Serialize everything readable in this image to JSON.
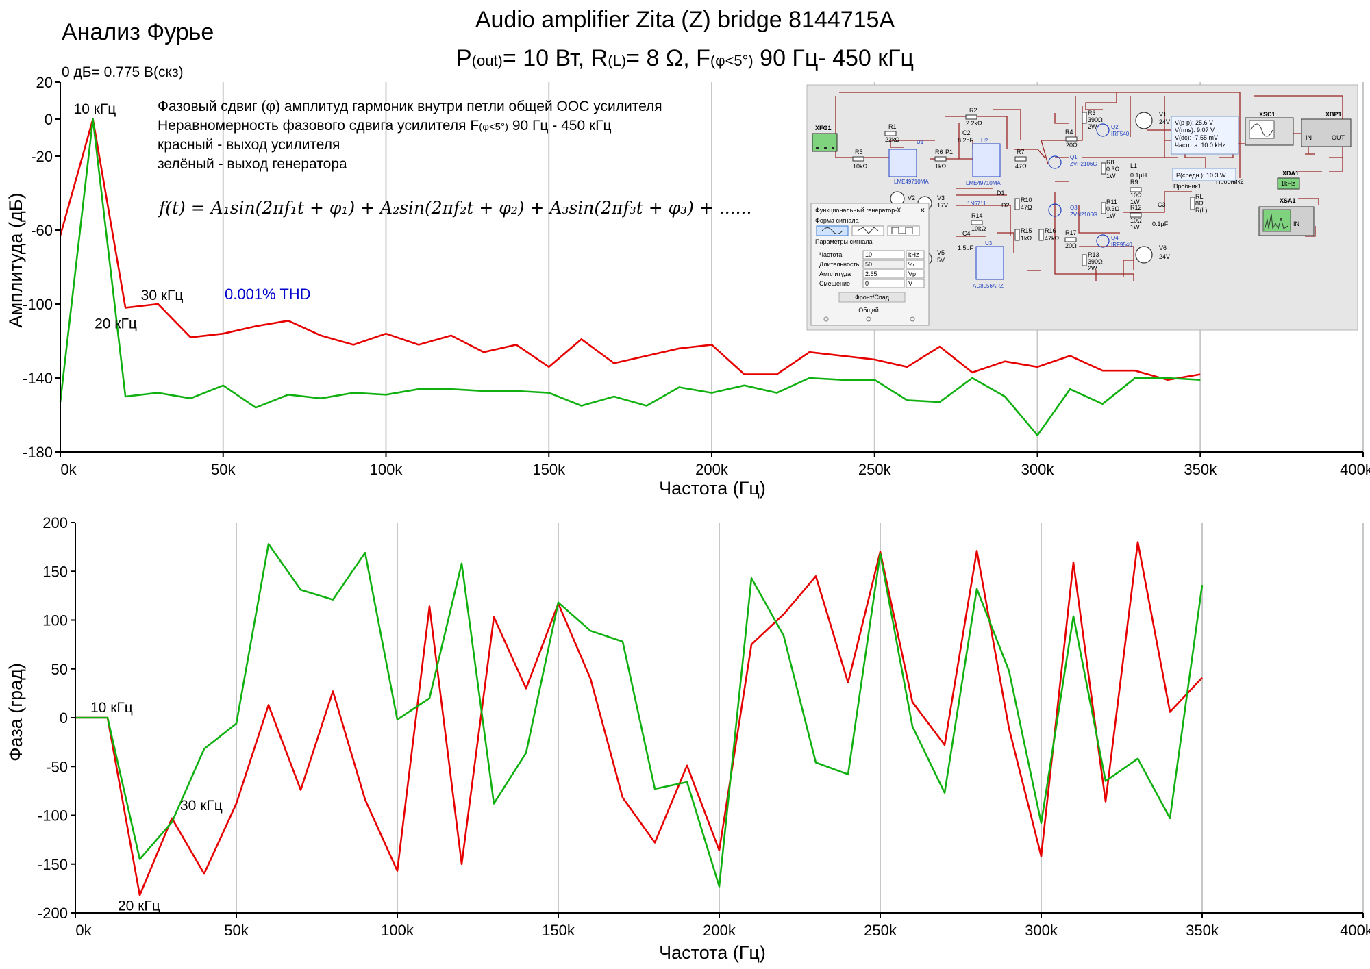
{
  "header": {
    "title_left": "Анализ Фурье",
    "title_main": "Audio amplifier Zita (Z) bridge 8144715A",
    "subtitle": {
      "p": "P",
      "p_sub": "(out)",
      "p_val": "= 10 Вт, R",
      "r_sub": "(L)",
      "r_val": "= 8 Ω, F",
      "f_sub": "(φ<5°)",
      "f_val": " 90 Гц- 450 кГц"
    },
    "db_ref": "0 дБ= 0.775 В(скз)"
  },
  "legend": {
    "line1": "Фазовый сдвиг (φ) амплитуд гармоник внутри петли общей ООС усилителя",
    "line2_a": "Неравномерность фазового сдвига усилителя F",
    "line2_sub": "(φ<5°)",
    "line2_b": "  90 Гц - 450 кГц",
    "red": "красный - выход усилителя",
    "green": "зелёный - выход генератора",
    "formula": "f(t) = A₁sin(2πf₁t + φ₁) + A₂sin(2πf₂t + φ₂) + A₃sin(2πf₃t + φ₃) + ......",
    "thd": "0.001% THD"
  },
  "colors": {
    "red": "#e60000",
    "green": "#10b010",
    "blue": "#0000cc",
    "grid": "#c8c8c8"
  },
  "chart_data": [
    {
      "type": "line",
      "title": "Амплитуда",
      "xlabel": "Частота (Гц)",
      "ylabel": "Амплитуда (дБ)",
      "xlim": [
        0,
        400000
      ],
      "ylim": [
        -180,
        20
      ],
      "x_ticks": [
        {
          "v": 0,
          "label": "0k"
        },
        {
          "v": 50000,
          "label": "50k"
        },
        {
          "v": 100000,
          "label": "100k"
        },
        {
          "v": 150000,
          "label": "150k"
        },
        {
          "v": 200000,
          "label": "200k"
        },
        {
          "v": 250000,
          "label": "250k"
        },
        {
          "v": 300000,
          "label": "300k"
        },
        {
          "v": 350000,
          "label": "350k"
        },
        {
          "v": 400000,
          "label": "400k"
        }
      ],
      "y_ticks": [
        {
          "v": 20,
          "label": "20"
        },
        {
          "v": 0,
          "label": "0"
        },
        {
          "v": -20,
          "label": "-20"
        },
        {
          "v": -60,
          "label": "-60"
        },
        {
          "v": -100,
          "label": "-100"
        },
        {
          "v": -140,
          "label": "-140"
        },
        {
          "v": -180,
          "label": "-180"
        }
      ],
      "x": [
        0,
        10000,
        20000,
        30000,
        40000,
        50000,
        60000,
        70000,
        80000,
        90000,
        100000,
        110000,
        120000,
        130000,
        140000,
        150000,
        160000,
        170000,
        180000,
        190000,
        200000,
        210000,
        220000,
        230000,
        240000,
        250000,
        260000,
        270000,
        280000,
        290000,
        300000,
        310000,
        320000,
        330000,
        340000,
        350000
      ],
      "series": [
        {
          "name": "красный - выход усилителя",
          "color": "red",
          "values": [
            -63,
            0,
            -102,
            -100,
            -118,
            -116,
            -112,
            -109,
            -117,
            -122,
            -116,
            -122,
            -117,
            -126,
            -122,
            -134,
            -119,
            -132,
            -128,
            -124,
            -122,
            -138,
            -138,
            -126,
            -128,
            -130,
            -134,
            -123,
            -137,
            -131,
            -134,
            -128,
            -136,
            -136,
            -141,
            -138
          ]
        },
        {
          "name": "зелёный - выход генератора",
          "color": "green",
          "values": [
            -153,
            0,
            -150,
            -148,
            -151,
            -144,
            -156,
            -149,
            -151,
            -148,
            -149,
            -146,
            -146,
            -147,
            -147,
            -148,
            -155,
            -150,
            -155,
            -145,
            -148,
            -144,
            -148,
            -140,
            -141,
            -141,
            -152,
            -153,
            -140,
            -150,
            -171,
            -146,
            -154,
            -140,
            -140,
            -141
          ]
        }
      ],
      "annotations": [
        {
          "text": "10 кГц",
          "x": 10000,
          "y": 0
        },
        {
          "text": "20 кГц",
          "x": 20000,
          "y": -102
        },
        {
          "text": "30 кГц",
          "x": 30000,
          "y": -100
        }
      ]
    },
    {
      "type": "line",
      "title": "Фаза",
      "xlabel": "Частота (Гц)",
      "ylabel": "Фаза (град)",
      "xlim": [
        0,
        400000
      ],
      "ylim": [
        -200,
        200
      ],
      "x_ticks": [
        {
          "v": 0,
          "label": "0k"
        },
        {
          "v": 50000,
          "label": "50k"
        },
        {
          "v": 100000,
          "label": "100k"
        },
        {
          "v": 150000,
          "label": "150k"
        },
        {
          "v": 200000,
          "label": "200k"
        },
        {
          "v": 250000,
          "label": "250k"
        },
        {
          "v": 300000,
          "label": "300k"
        },
        {
          "v": 350000,
          "label": "350k"
        },
        {
          "v": 400000,
          "label": "400k"
        }
      ],
      "y_ticks": [
        {
          "v": 200,
          "label": "200"
        },
        {
          "v": 150,
          "label": "150"
        },
        {
          "v": 100,
          "label": "100"
        },
        {
          "v": 50,
          "label": "50"
        },
        {
          "v": 0,
          "label": "0"
        },
        {
          "v": -50,
          "label": "-50"
        },
        {
          "v": -100,
          "label": "-100"
        },
        {
          "v": -150,
          "label": "-150"
        },
        {
          "v": -200,
          "label": "-200"
        }
      ],
      "x": [
        0,
        10000,
        20000,
        30000,
        40000,
        50000,
        60000,
        70000,
        80000,
        90000,
        100000,
        110000,
        120000,
        130000,
        140000,
        150000,
        160000,
        170000,
        180000,
        190000,
        200000,
        210000,
        220000,
        230000,
        240000,
        250000,
        260000,
        270000,
        280000,
        290000,
        300000,
        310000,
        320000,
        330000,
        340000,
        350000
      ],
      "series": [
        {
          "name": "красный - выход усилителя",
          "color": "red",
          "values": [
            0,
            0,
            -182,
            -103,
            -160,
            -88,
            13,
            -74,
            27,
            -84,
            -157,
            114,
            -150,
            103,
            30,
            117,
            40,
            -82,
            -128,
            -49,
            -136,
            75,
            106,
            145,
            36,
            170,
            16,
            -28,
            171,
            -11,
            -142,
            159,
            -86,
            180,
            6,
            41
          ]
        },
        {
          "name": "зелёный - выход генератора",
          "color": "green",
          "values": [
            0,
            0,
            -145,
            -107,
            -32,
            -6,
            178,
            131,
            121,
            169,
            -2,
            20,
            158,
            -88,
            -36,
            118,
            89,
            78,
            -73,
            -66,
            -173,
            143,
            84,
            -46,
            -58,
            168,
            -9,
            -77,
            132,
            48,
            -108,
            104,
            -65,
            -42,
            -103,
            136
          ]
        }
      ],
      "annotations": [
        {
          "text": "10 кГц",
          "x": 10000,
          "y": 0
        },
        {
          "text": "20 кГц",
          "x": 20000,
          "y": -182
        },
        {
          "text": "30 кГц",
          "x": 30000,
          "y": -103
        }
      ]
    }
  ],
  "schematic": {
    "labels": {
      "xfg1": "XFG1",
      "xsc1": "XSC1",
      "xbp1": "XBP1",
      "xda1": "XDA1",
      "xsa1": "XSA1",
      "u1": "U1",
      "u2": "U2",
      "u3": "U3",
      "u1_part": "LME49710MA",
      "u2_part": "LME49710MA",
      "u3_part": "AD8056ARZ",
      "q1": "Q1",
      "q1_part": "ZVP2106G",
      "q2": "Q2",
      "q2_part": "IRF540",
      "q3": "Q3",
      "q3_part": "ZVN2106G",
      "q4": "Q4",
      "q4_part": "IRF9540",
      "r1": "R1",
      "r1_val": "22kΩ",
      "r2": "R2",
      "r2_val": "2.2kΩ",
      "r5": "R5",
      "r5_val": "10kΩ",
      "r6": "R6",
      "r6_val": "1kΩ",
      "p1": "P1",
      "r7": "R7",
      "r7_val": "47Ω",
      "r4": "R4",
      "r4_val": "20Ω",
      "r3": "R3",
      "r3_val": "390Ω",
      "r3_w": "2W",
      "r8": "R8",
      "r8_val": "0.3Ω",
      "r8_w": "1W",
      "l1": "L1",
      "l1_val": "0.1μH",
      "r9": "R9",
      "r9_val": "10Ω",
      "r9_w": "1W",
      "r11": "R11",
      "r11_val": "0.3Ω",
      "r11_w": "1W",
      "r12": "R12",
      "r12_val": "10Ω",
      "r12_w": "1W",
      "c3": "C3",
      "c3_val": "0.1μF",
      "r10": "R10",
      "r10_val": "47Ω",
      "r15": "R15",
      "r15_val": "1kΩ",
      "r16": "R16",
      "r16_val": "47kΩ",
      "r17": "R17",
      "r17_val": "20Ω",
      "r13": "R13",
      "r13_val": "390Ω",
      "r13_w": "2W",
      "c2": "C2",
      "c2_val": "8.2pF",
      "d1": "D1",
      "d2": "D2",
      "d_part": "1N5711",
      "r14": "R14",
      "r14_val": "10kΩ",
      "c4": "C4",
      "c4_val": "1.5pF",
      "v1": "V1",
      "v1_val": "24V",
      "v2": "V2",
      "v3": "V3",
      "v3_val": "17V",
      "v5": "V5",
      "v5_val": "5V",
      "v6": "V6",
      "v6_val": "24V",
      "rl": "RL",
      "rl_val": "8Ω",
      "rl_lbl": "R(L)",
      "probe1": "Пробник1",
      "probe2": "Пробник2",
      "in": "IN",
      "out": "OUT",
      "one_khz": "1kHz"
    },
    "probe_box": [
      "V(p-p): 25.6 V",
      "V(rms): 9.07 V",
      "V(dc): -7.55 mV",
      "Частота: 10.0 kHz"
    ],
    "power_box": "P(средн.): 10.3 W",
    "generator": {
      "title": "Функциональный генератор-X...",
      "waveform_label": "Форма сигнала",
      "params_label": "Параметры сигнала",
      "rows": [
        {
          "label": "Частота",
          "value": "10",
          "unit": "kHz"
        },
        {
          "label": "Длительность",
          "value": "50",
          "unit": "%"
        },
        {
          "label": "Амплитуда",
          "value": "2.65",
          "unit": "Vp"
        },
        {
          "label": "Смещение",
          "value": "0",
          "unit": "V"
        }
      ],
      "button": "Фронт/Спад",
      "common": "Общий"
    }
  }
}
